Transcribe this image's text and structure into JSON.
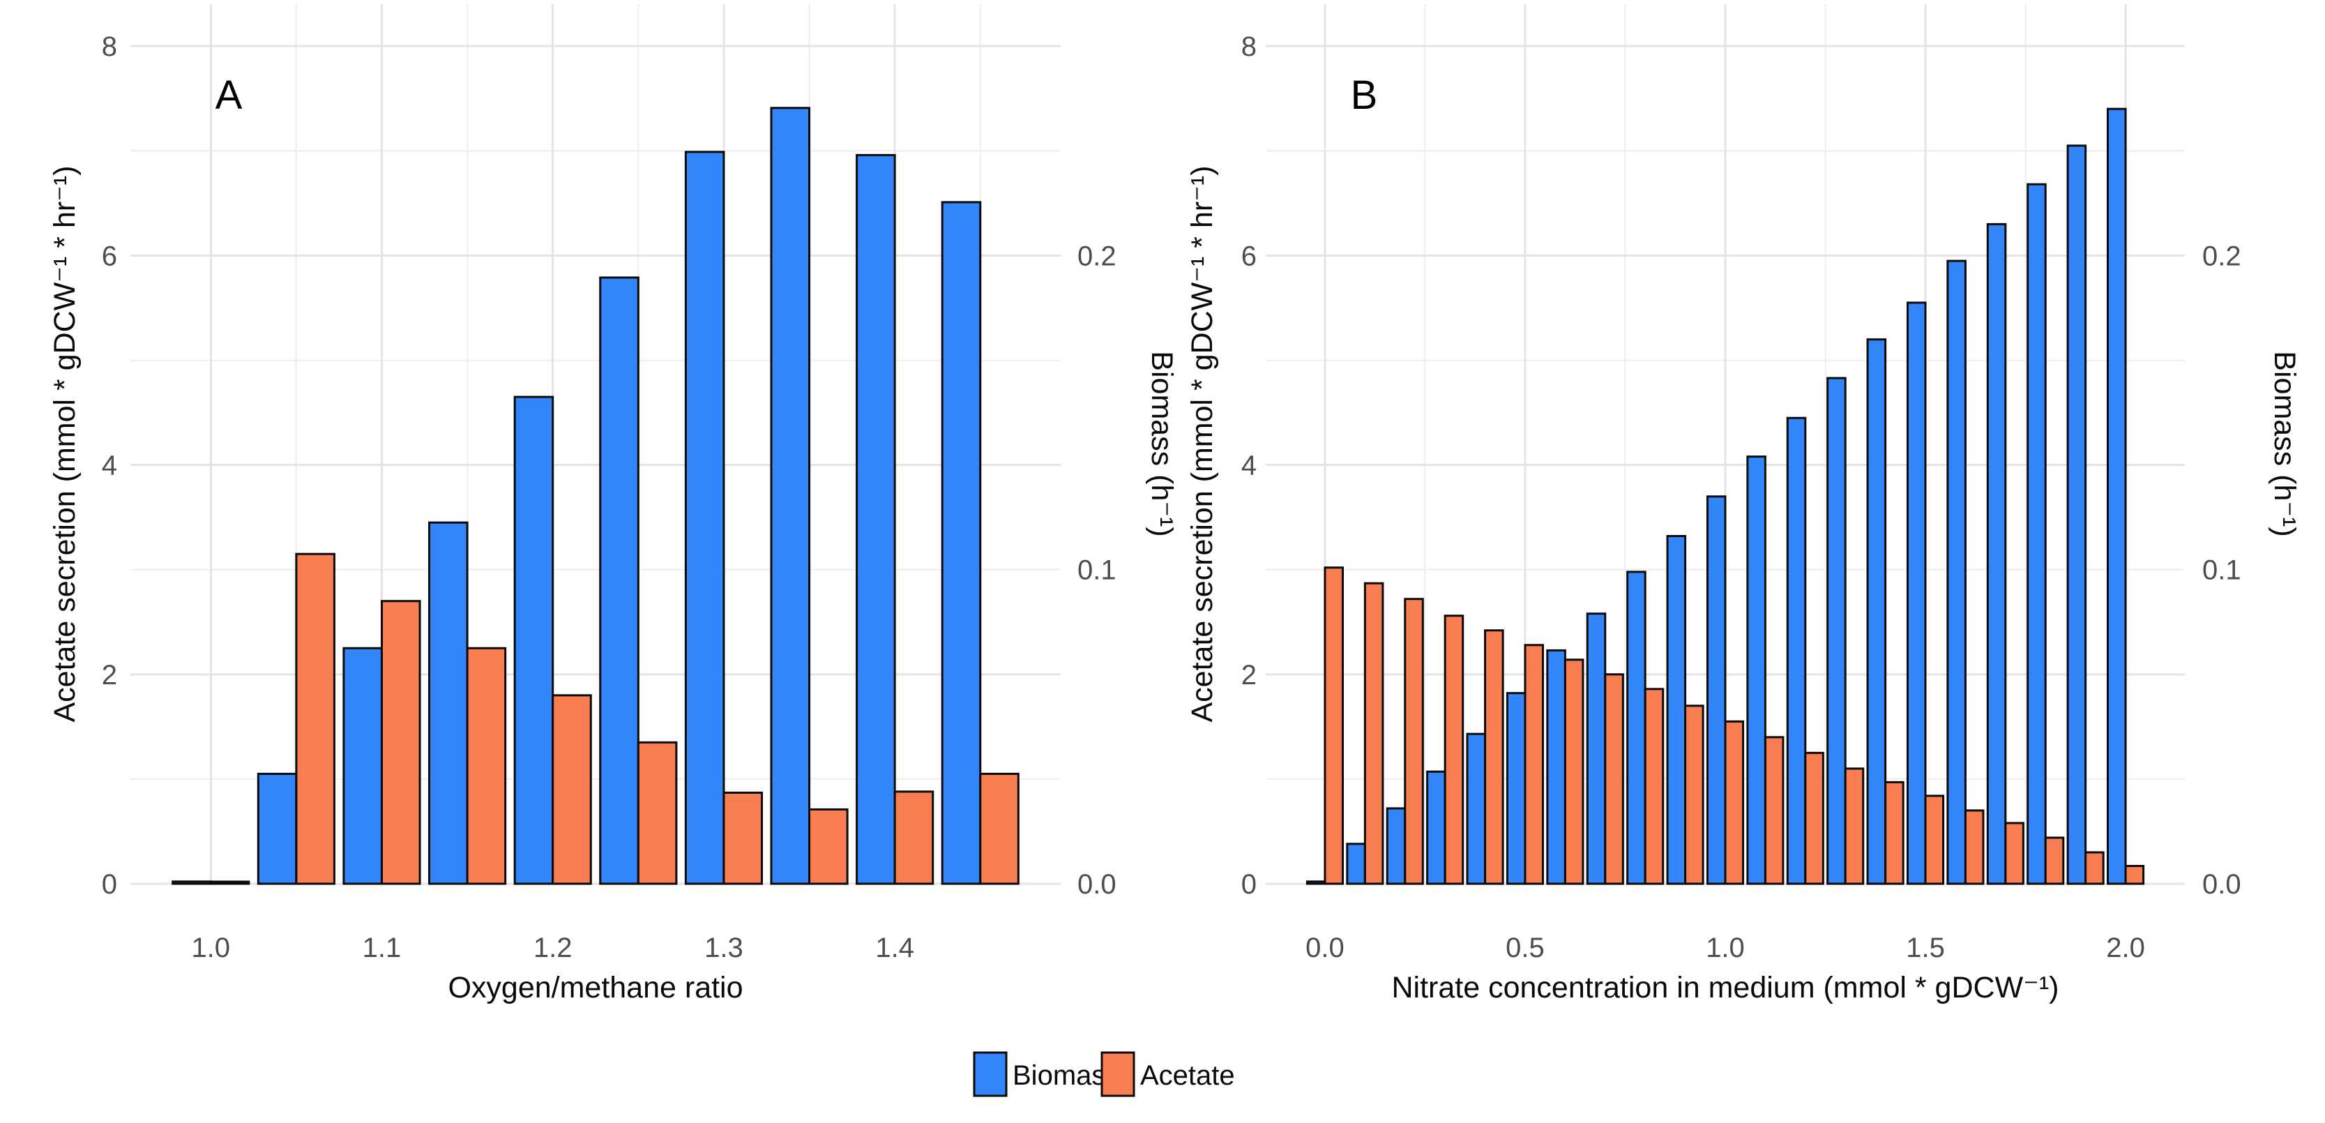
{
  "figure_background": "#ffffff",
  "colors": {
    "biomass": "#3385FA",
    "acetate": "#F87E52",
    "bar_border": "#0a0a0a",
    "grid_major": "#e4e4e4",
    "grid_minor": "#f0f0f0",
    "tick_text": "#4d4d4d"
  },
  "legend": {
    "items": [
      {
        "label": "Biomass",
        "color_key": "biomass"
      },
      {
        "label": "Acetate",
        "color_key": "acetate"
      }
    ]
  },
  "chart_data": [
    {
      "type": "bar",
      "tag": "A",
      "xlabel": "Oxygen/methane ratio",
      "ylabel_left": "Acetate secretion (mmol * gDCW⁻¹ * hr⁻¹)",
      "ylabel_right": "Biomass (h⁻¹)",
      "x_tick_labels": [
        "1.0",
        "1.1",
        "1.2",
        "1.3",
        "1.4"
      ],
      "x_tick_values": [
        1.0,
        1.1,
        1.2,
        1.3,
        1.4
      ],
      "x_minor_values": [
        1.05,
        1.15,
        1.25,
        1.35,
        1.45
      ],
      "y_left_tick_labels": [
        "0",
        "2",
        "4",
        "6",
        "8"
      ],
      "y_left_tick_values": [
        0,
        2,
        4,
        6,
        8
      ],
      "y_minor_values": [
        1,
        3,
        5,
        7
      ],
      "y_right_tick_labels": [
        "0.0",
        "0.1",
        "0.2"
      ],
      "y_right_tick_values": [
        0.0,
        0.1,
        0.2
      ],
      "ylim_left": [
        0,
        8.4
      ],
      "right_to_left_scale": 30,
      "x": [
        1.0,
        1.05,
        1.1,
        1.15,
        1.2,
        1.25,
        1.3,
        1.35,
        1.4,
        1.45
      ],
      "x_step": 0.05,
      "series": [
        {
          "name": "Biomass",
          "unit": "h⁻¹",
          "axis": "right",
          "values": [
            0.0007,
            0.035,
            0.075,
            0.115,
            0.155,
            0.193,
            0.233,
            0.247,
            0.232,
            0.217
          ]
        },
        {
          "name": "Acetate",
          "unit": "mmol * gDCW⁻¹ * hr⁻¹",
          "axis": "left",
          "values": [
            0.02,
            3.15,
            2.7,
            2.25,
            1.8,
            1.35,
            0.87,
            0.71,
            0.88,
            1.05
          ]
        }
      ]
    },
    {
      "type": "bar",
      "tag": "B",
      "xlabel": "Nitrate concentration in medium (mmol * gDCW⁻¹)",
      "ylabel_left": "Acetate secretion (mmol * gDCW⁻¹ * hr⁻¹)",
      "ylabel_right": "Biomass (h⁻¹)",
      "x_tick_labels": [
        "0.0",
        "0.5",
        "1.0",
        "1.5",
        "2.0"
      ],
      "x_tick_values": [
        0.0,
        0.5,
        1.0,
        1.5,
        2.0
      ],
      "x_minor_values": [
        0.25,
        0.75,
        1.25,
        1.75
      ],
      "y_left_tick_labels": [
        "0",
        "2",
        "4",
        "6",
        "8"
      ],
      "y_left_tick_values": [
        0,
        2,
        4,
        6,
        8
      ],
      "y_minor_values": [
        1,
        3,
        5,
        7
      ],
      "y_right_tick_labels": [
        "0.0",
        "0.1",
        "0.2"
      ],
      "y_right_tick_values": [
        0.0,
        0.1,
        0.2
      ],
      "ylim_left": [
        0,
        8.4
      ],
      "right_to_left_scale": 30,
      "x": [
        0.0,
        0.1,
        0.2,
        0.3,
        0.4,
        0.5,
        0.6,
        0.7,
        0.8,
        0.9,
        1.0,
        1.1,
        1.2,
        1.3,
        1.4,
        1.5,
        1.6,
        1.7,
        1.8,
        1.9,
        2.0
      ],
      "x_step": 0.1,
      "series": [
        {
          "name": "Biomass",
          "unit": "h⁻¹",
          "axis": "right",
          "values": [
            0.0007,
            0.0127,
            0.024,
            0.0357,
            0.0477,
            0.0607,
            0.0743,
            0.086,
            0.0993,
            0.1107,
            0.1233,
            0.136,
            0.1483,
            0.161,
            0.1733,
            0.185,
            0.1983,
            0.21,
            0.2227,
            0.235,
            0.2467
          ]
        },
        {
          "name": "Acetate",
          "unit": "mmol * gDCW⁻¹ * hr⁻¹",
          "axis": "left",
          "values": [
            3.02,
            2.87,
            2.72,
            2.56,
            2.42,
            2.28,
            2.14,
            2.0,
            1.86,
            1.7,
            1.55,
            1.4,
            1.25,
            1.1,
            0.97,
            0.84,
            0.7,
            0.58,
            0.44,
            0.3,
            0.17
          ]
        }
      ]
    }
  ]
}
